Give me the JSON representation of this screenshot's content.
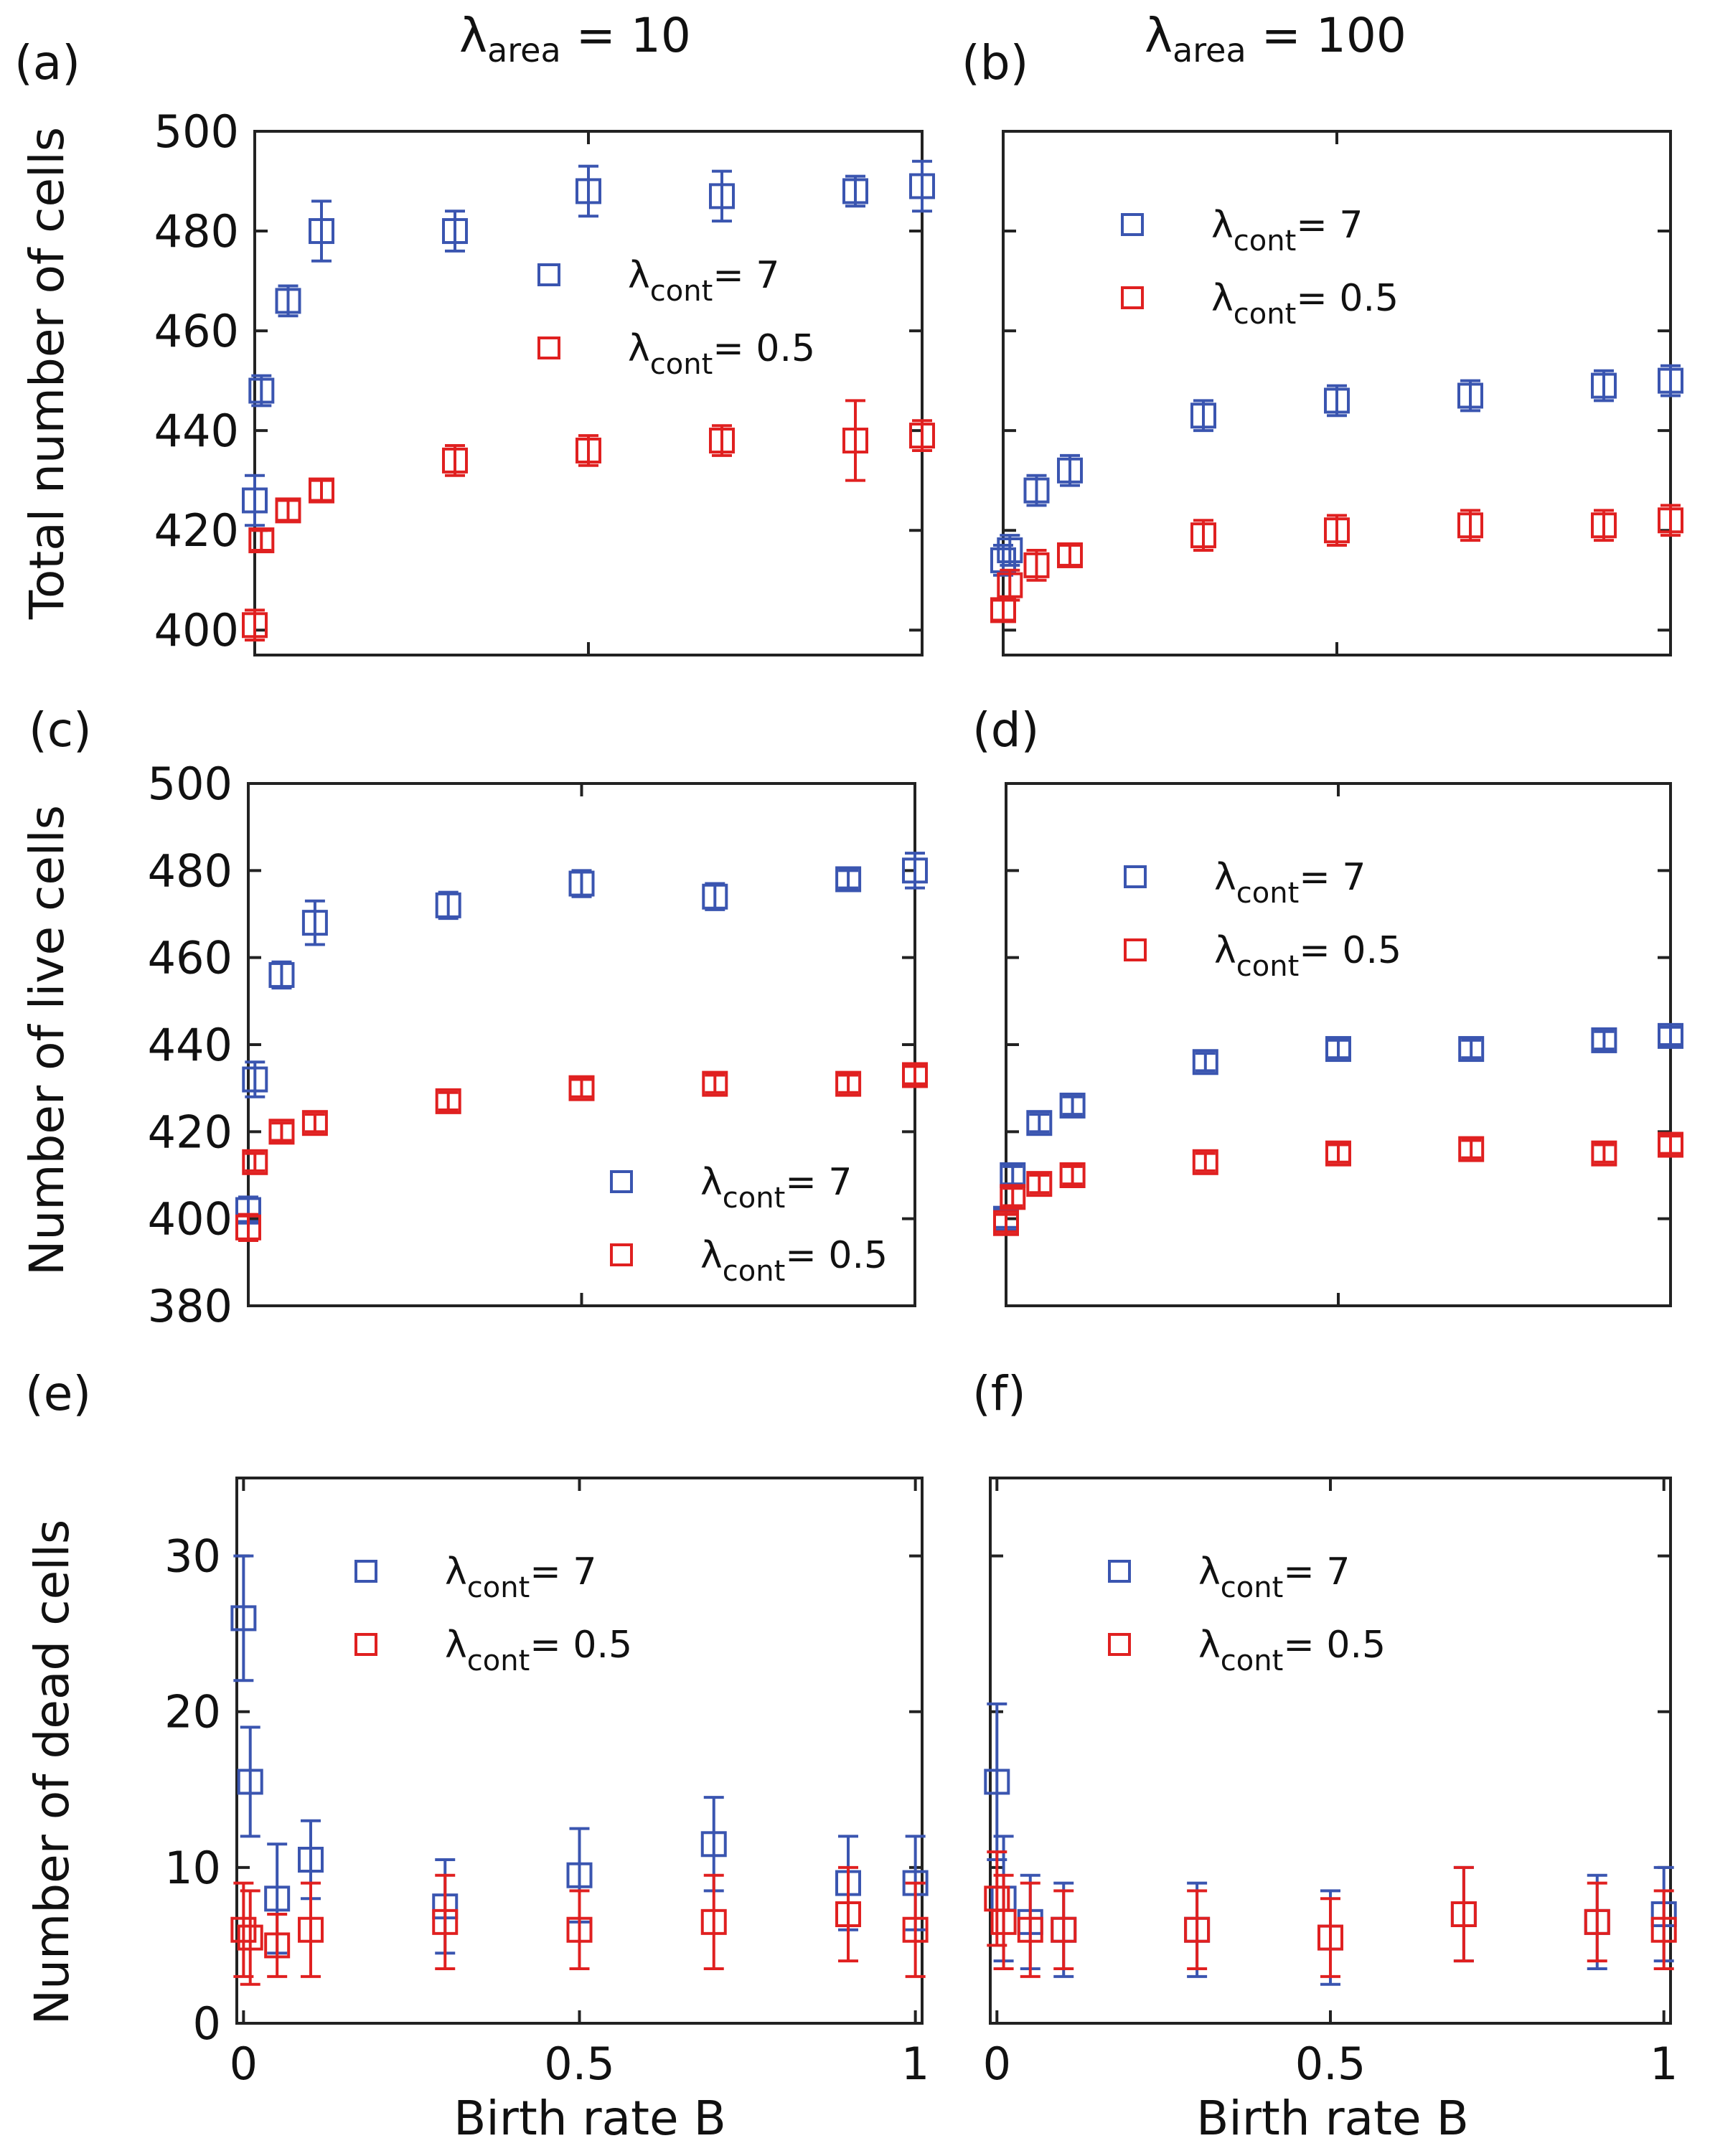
{
  "columns": [
    {
      "header_symbol": "λ",
      "header_sub": "area",
      "header_rest": " = 10"
    },
    {
      "header_symbol": "λ",
      "header_sub": "area",
      "header_rest": " = 100"
    }
  ],
  "shared_xlabel": "Birth rate B",
  "colors": {
    "lambda7": "#3a55b0",
    "lambda05": "#e02020"
  },
  "chart_data": [
    {
      "id": "a",
      "panel_label": "(a)",
      "type": "scatter",
      "ylabel": "Total number of cells",
      "xlim": [
        0,
        1
      ],
      "ylim": [
        395,
        500
      ],
      "yticks": [
        400,
        420,
        440,
        460,
        480,
        500
      ],
      "ytick_labels": [
        "400",
        "420",
        "440",
        "460",
        "480",
        "500"
      ],
      "xticks": [
        0,
        0.5,
        1
      ],
      "xtick_labels": [],
      "legend": {
        "position": "center-right",
        "items": [
          "λcont= 7",
          "λcont= 0.5"
        ],
        "sym": "λ",
        "sub": "cont",
        "rest": [
          "= 7",
          "= 0.5"
        ]
      },
      "series": [
        {
          "name": "λcont = 7",
          "color": "#3a55b0",
          "x": [
            0.0,
            0.01,
            0.05,
            0.1,
            0.3,
            0.5,
            0.7,
            0.9,
            1.0
          ],
          "y": [
            426,
            448,
            466,
            480,
            480,
            488,
            487,
            488,
            489
          ],
          "err": [
            5,
            3,
            3,
            6,
            4,
            5,
            5,
            3,
            5
          ]
        },
        {
          "name": "λcont = 0.5",
          "color": "#e02020",
          "x": [
            0.0,
            0.01,
            0.05,
            0.1,
            0.3,
            0.5,
            0.7,
            0.9,
            1.0
          ],
          "y": [
            401,
            418,
            424,
            428,
            434,
            436,
            438,
            438,
            439
          ],
          "err": [
            3,
            2,
            2,
            2,
            3,
            3,
            3,
            8,
            3
          ]
        }
      ]
    },
    {
      "id": "b",
      "panel_label": "(b)",
      "type": "scatter",
      "ylabel": "",
      "xlim": [
        0,
        1
      ],
      "ylim": [
        395,
        500
      ],
      "yticks": [
        400,
        420,
        440,
        460,
        480,
        500
      ],
      "ytick_labels": [],
      "xticks": [
        0,
        0.5,
        1
      ],
      "xtick_labels": [],
      "legend": {
        "position": "top-left",
        "items": [
          "λcont= 7",
          "λcont= 0.5"
        ],
        "sym": "λ",
        "sub": "cont",
        "rest": [
          "= 7",
          "= 0.5"
        ]
      },
      "series": [
        {
          "name": "λcont = 7",
          "color": "#3a55b0",
          "x": [
            0.0,
            0.01,
            0.05,
            0.1,
            0.3,
            0.5,
            0.7,
            0.9,
            1.0
          ],
          "y": [
            414,
            416,
            428,
            432,
            443,
            446,
            447,
            449,
            450
          ],
          "err": [
            3,
            3,
            3,
            3,
            3,
            3,
            3,
            3,
            3
          ]
        },
        {
          "name": "λcont = 0.5",
          "color": "#e02020",
          "x": [
            0.0,
            0.01,
            0.05,
            0.1,
            0.3,
            0.5,
            0.7,
            0.9,
            1.0
          ],
          "y": [
            404,
            409,
            413,
            415,
            419,
            420,
            421,
            421,
            422
          ],
          "err": [
            2,
            3,
            3,
            2,
            3,
            3,
            3,
            3,
            3
          ]
        }
      ]
    },
    {
      "id": "c",
      "panel_label": "(c)",
      "type": "scatter",
      "ylabel": "Number of live cells",
      "xlim": [
        0,
        1
      ],
      "ylim": [
        380,
        500
      ],
      "yticks": [
        380,
        400,
        420,
        440,
        460,
        480,
        500
      ],
      "ytick_labels": [
        "380",
        "400",
        "420",
        "440",
        "460",
        "480",
        "500"
      ],
      "xticks": [
        0,
        0.5,
        1
      ],
      "xtick_labels": [],
      "legend": {
        "position": "bottom-right",
        "items": [
          "λcont= 7",
          "λcont= 0.5"
        ],
        "sym": "λ",
        "sub": "cont",
        "rest": [
          "= 7",
          "= 0.5"
        ]
      },
      "series": [
        {
          "name": "λcont = 7",
          "color": "#3a55b0",
          "x": [
            0.0,
            0.01,
            0.05,
            0.1,
            0.3,
            0.5,
            0.7,
            0.9,
            1.0
          ],
          "y": [
            402,
            432,
            456,
            468,
            472,
            477,
            474,
            478,
            480
          ],
          "err": [
            3,
            4,
            3,
            5,
            3,
            3,
            3,
            2,
            4
          ]
        },
        {
          "name": "λcont = 0.5",
          "color": "#e02020",
          "x": [
            0.0,
            0.01,
            0.05,
            0.1,
            0.3,
            0.5,
            0.7,
            0.9,
            1.0
          ],
          "y": [
            398,
            413,
            420,
            422,
            427,
            430,
            431,
            431,
            433
          ],
          "err": [
            3,
            2,
            2,
            2,
            2,
            2,
            2,
            2,
            2
          ]
        }
      ]
    },
    {
      "id": "d",
      "panel_label": "(d)",
      "type": "scatter",
      "ylabel": "",
      "xlim": [
        0,
        1
      ],
      "ylim": [
        380,
        500
      ],
      "yticks": [
        380,
        400,
        420,
        440,
        460,
        480,
        500
      ],
      "ytick_labels": [],
      "xticks": [
        0,
        0.5,
        1
      ],
      "xtick_labels": [],
      "legend": {
        "position": "top-left",
        "items": [
          "λcont= 7",
          "λcont= 0.5"
        ],
        "sym": "λ",
        "sub": "cont",
        "rest": [
          "= 7",
          "= 0.5"
        ]
      },
      "series": [
        {
          "name": "λcont = 7",
          "color": "#3a55b0",
          "x": [
            0.0,
            0.01,
            0.05,
            0.1,
            0.3,
            0.5,
            0.7,
            0.9,
            1.0
          ],
          "y": [
            400,
            410,
            422,
            426,
            436,
            439,
            439,
            441,
            442
          ],
          "err": [
            2,
            2,
            2,
            2,
            2,
            2,
            2,
            2,
            2
          ]
        },
        {
          "name": "λcont = 0.5",
          "color": "#e02020",
          "x": [
            0.0,
            0.01,
            0.05,
            0.1,
            0.3,
            0.5,
            0.7,
            0.9,
            1.0
          ],
          "y": [
            399,
            405,
            408,
            410,
            413,
            415,
            416,
            415,
            417
          ],
          "err": [
            2,
            2,
            2,
            2,
            2,
            2,
            2,
            2,
            2
          ]
        }
      ]
    },
    {
      "id": "e",
      "panel_label": "(e)",
      "type": "scatter",
      "ylabel": "Number of dead cells",
      "xlim": [
        -0.01,
        1.01
      ],
      "ylim": [
        0,
        35
      ],
      "yticks": [
        0,
        10,
        20,
        30
      ],
      "ytick_labels": [
        "0",
        "10",
        "20",
        "30"
      ],
      "xticks": [
        0,
        0.5,
        1
      ],
      "xtick_labels": [
        "0",
        "0.5",
        "1"
      ],
      "legend": {
        "position": "top-left",
        "items": [
          "λcont= 7",
          "λcont= 0.5"
        ],
        "sym": "λ",
        "sub": "cont",
        "rest": [
          "= 7",
          "= 0.5"
        ]
      },
      "series": [
        {
          "name": "λcont = 7",
          "color": "#3a55b0",
          "x": [
            0.0,
            0.01,
            0.05,
            0.1,
            0.3,
            0.5,
            0.7,
            0.9,
            1.0
          ],
          "y": [
            26,
            15.5,
            8,
            10.5,
            7.5,
            9.5,
            11.5,
            9,
            9
          ],
          "err": [
            4,
            3.5,
            3.5,
            2.5,
            3,
            3,
            3,
            3,
            3
          ]
        },
        {
          "name": "λcont = 0.5",
          "color": "#e02020",
          "x": [
            0.0,
            0.01,
            0.05,
            0.1,
            0.3,
            0.5,
            0.7,
            0.9,
            1.0
          ],
          "y": [
            6,
            5.5,
            5,
            6,
            6.5,
            6,
            6.5,
            7,
            6
          ],
          "err": [
            3,
            3,
            2,
            3,
            3,
            2.5,
            3,
            3,
            3
          ]
        }
      ]
    },
    {
      "id": "f",
      "panel_label": "(f)",
      "type": "scatter",
      "ylabel": "",
      "xlim": [
        -0.01,
        1.01
      ],
      "ylim": [
        0,
        35
      ],
      "yticks": [
        0,
        10,
        20,
        30
      ],
      "ytick_labels": [],
      "xticks": [
        0,
        0.5,
        1
      ],
      "xtick_labels": [
        "0",
        "0.5",
        "1"
      ],
      "legend": {
        "position": "top-left",
        "items": [
          "λcont= 7",
          "λcont= 0.5"
        ],
        "sym": "λ",
        "sub": "cont",
        "rest": [
          "= 7",
          "= 0.5"
        ]
      },
      "series": [
        {
          "name": "λcont = 7",
          "color": "#3a55b0",
          "x": [
            0.0,
            0.01,
            0.05,
            0.1,
            0.3,
            0.5,
            0.7,
            0.9,
            1.0
          ],
          "y": [
            15.5,
            8,
            6.5,
            6,
            6,
            5.5,
            7,
            6.5,
            7
          ],
          "err": [
            5,
            4,
            3,
            3,
            3,
            3,
            3,
            3,
            3
          ]
        },
        {
          "name": "λcont = 0.5",
          "color": "#e02020",
          "x": [
            0.0,
            0.01,
            0.05,
            0.1,
            0.3,
            0.5,
            0.7,
            0.9,
            1.0
          ],
          "y": [
            8,
            6.5,
            6,
            6,
            6,
            5.5,
            7,
            6.5,
            6
          ],
          "err": [
            3,
            3,
            3,
            2.5,
            2.5,
            2.5,
            3,
            2.5,
            2.5
          ]
        }
      ]
    }
  ]
}
